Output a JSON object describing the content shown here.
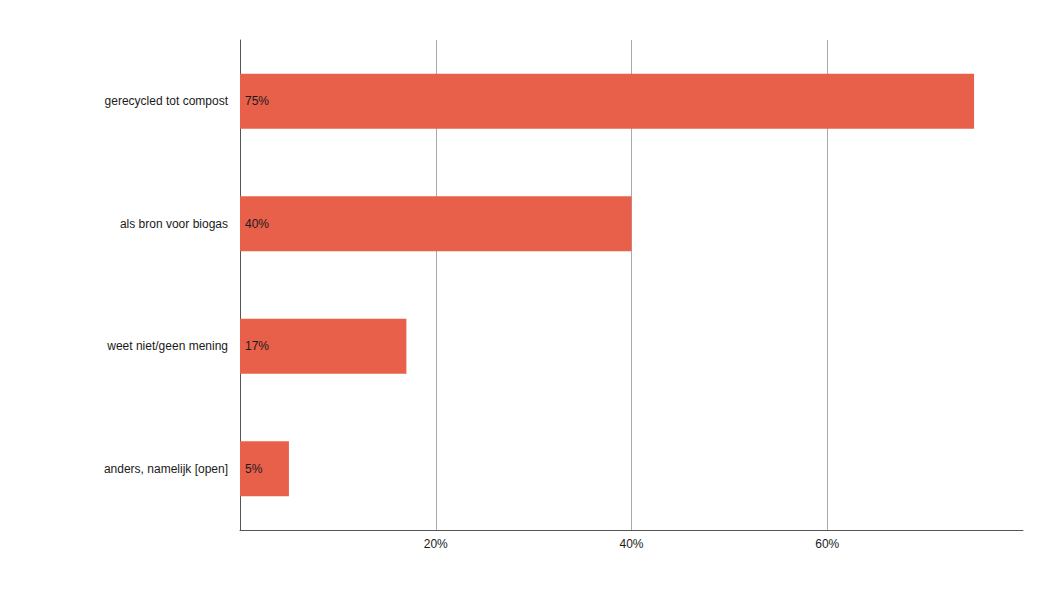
{
  "chart_data": {
    "type": "bar",
    "orientation": "horizontal",
    "categories": [
      "gerecycled tot compost",
      "als bron voor biogas",
      "weet niet/geen mening",
      "anders, namelijk [open]"
    ],
    "values": [
      75,
      40,
      17,
      5
    ],
    "value_labels": [
      "75%",
      "40%",
      "17%",
      "5%"
    ],
    "data_labels": true,
    "color": "#E8604A",
    "xlim": [
      0,
      80
    ],
    "xticks": [
      {
        "value": 20,
        "label": "20%"
      },
      {
        "value": 40,
        "label": "40%"
      },
      {
        "value": 60,
        "label": "60%"
      }
    ],
    "grid": true
  }
}
